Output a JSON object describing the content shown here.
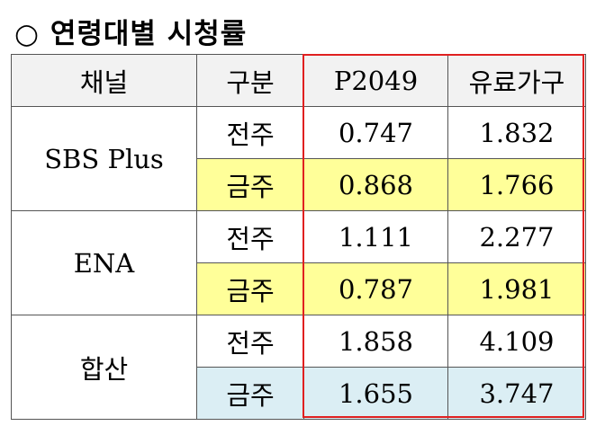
{
  "title": "○ 연령대별 시청률",
  "table": {
    "header": [
      "채널",
      "구분",
      "P2049",
      "유료가구"
    ],
    "groups": [
      {
        "channel": "SBS Plus",
        "rows": [
          [
            "전주",
            "0.747",
            "1.832"
          ],
          [
            "금주",
            "0.868",
            "1.766"
          ]
        ]
      },
      {
        "channel": "ENA",
        "rows": [
          [
            "전주",
            "1.111",
            "2.277"
          ],
          [
            "금주",
            "0.787",
            "1.981"
          ]
        ]
      },
      {
        "channel": "합산",
        "rows": [
          [
            "전주",
            "1.858",
            "4.109"
          ],
          [
            "금주",
            "1.655",
            "3.747"
          ]
        ]
      }
    ]
  }
}
